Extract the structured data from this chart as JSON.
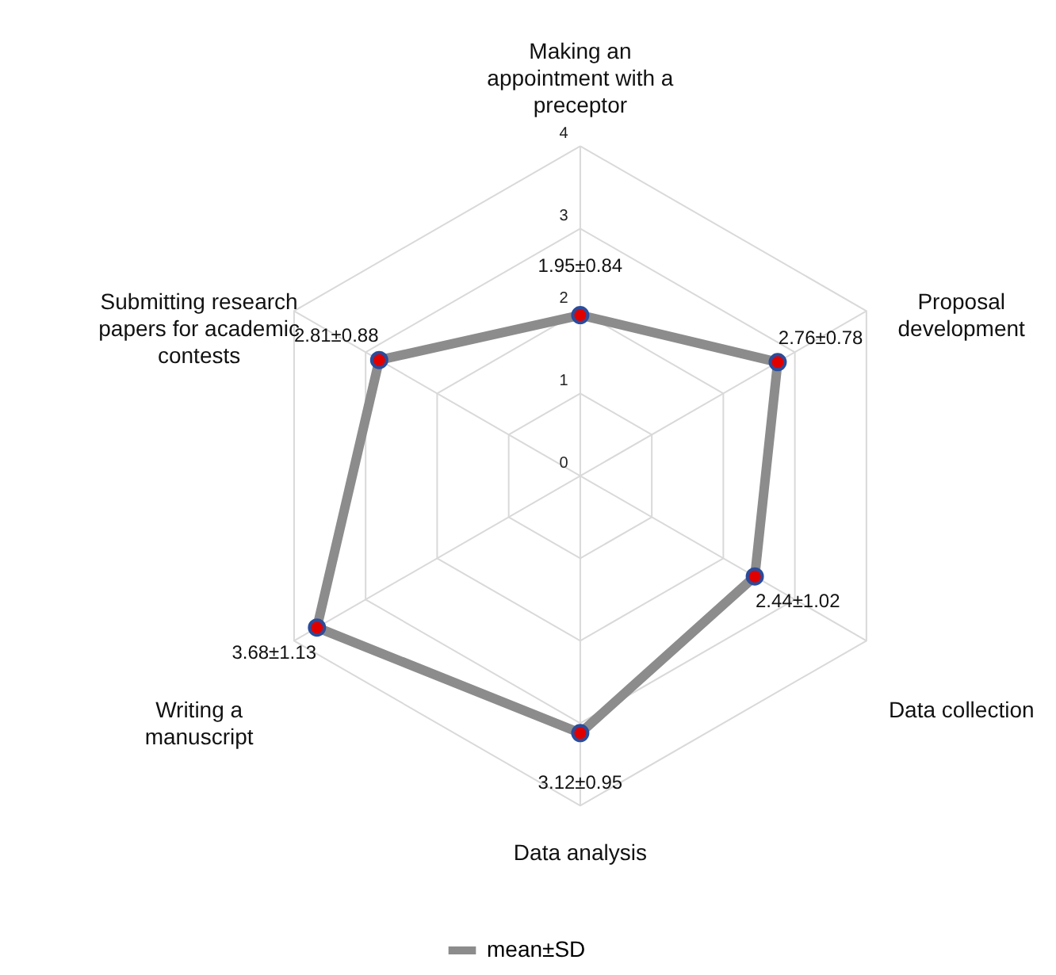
{
  "chart_data": {
    "type": "radar",
    "categories": [
      "Making an appointment with a preceptor",
      "Proposal development",
      "Data collection",
      "Data analysis",
      "Writing a manuscript",
      "Submitting research papers for academic contests"
    ],
    "series": [
      {
        "name": "mean±SD",
        "color": "#8c8c8c",
        "values": [
          1.95,
          2.76,
          2.44,
          3.12,
          3.68,
          2.81
        ],
        "value_labels": [
          "1.95±0.84",
          "2.76±0.78",
          "2.44±1.02",
          "3.12±0.95",
          "3.68±1.13",
          "2.81±0.88"
        ]
      }
    ],
    "ylim": [
      0,
      4
    ],
    "yticks": [
      0,
      1,
      2,
      3,
      4
    ],
    "grid": true,
    "legend": "bottom",
    "marker": "circle",
    "line_style": "solid"
  }
}
